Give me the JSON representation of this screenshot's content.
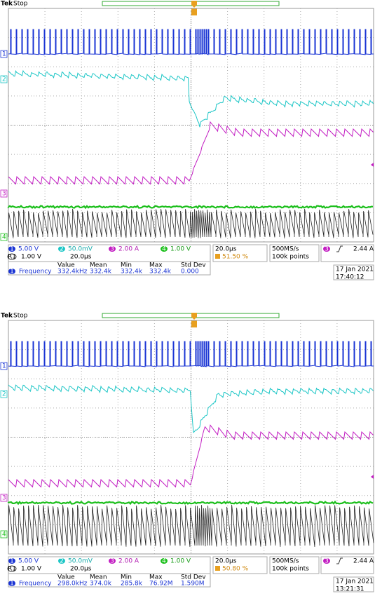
{
  "panels": [
    {
      "brand": "Tek",
      "status": "Stop",
      "markers": [
        "1",
        "2",
        "3",
        "4"
      ],
      "channels": [
        {
          "badge": "1",
          "scale": "5.00 V"
        },
        {
          "badge": "2",
          "scale": "50.0mV"
        },
        {
          "badge": "3",
          "scale": "2.00 A"
        },
        {
          "badge": "4",
          "scale": "1.00 V"
        }
      ],
      "ref": {
        "badge": "R1",
        "scale": "1.00 V",
        "time": "20.0µs"
      },
      "timebase": "20.0µs",
      "trigger_pos": "51.50 %",
      "sample_rate": "500MS/s",
      "record": "100k points",
      "trigger": {
        "badge": "3",
        "level": "2.44 A"
      },
      "measure": {
        "headers": [
          "Value",
          "Mean",
          "Min",
          "Max",
          "Std Dev"
        ],
        "badge": "1",
        "name": "Frequency",
        "values": [
          "332.4kHz",
          "332.4k",
          "332.4k",
          "332.4k",
          "0.000"
        ]
      },
      "date": "17 Jan  2021",
      "time": "17:40:12"
    },
    {
      "brand": "Tek",
      "status": "Stop",
      "markers": [
        "1",
        "2",
        "3",
        "4"
      ],
      "channels": [
        {
          "badge": "1",
          "scale": "5.00 V"
        },
        {
          "badge": "2",
          "scale": "50.0mV"
        },
        {
          "badge": "3",
          "scale": "2.00 A"
        },
        {
          "badge": "4",
          "scale": "1.00 V"
        }
      ],
      "ref": {
        "badge": "R1",
        "scale": "1.00 V",
        "time": "20.0µs"
      },
      "timebase": "20.0µs",
      "trigger_pos": "50.80 %",
      "sample_rate": "500MS/s",
      "record": "100k points",
      "trigger": {
        "badge": "3",
        "level": "2.44 A"
      },
      "measure": {
        "headers": [
          "Value",
          "Mean",
          "Min",
          "Max",
          "Std Dev"
        ],
        "badge": "1",
        "name": "Frequency",
        "values": [
          "298.0kHz",
          "374.0k",
          "285.8k",
          "76.92M",
          "1.590M"
        ]
      },
      "date": "17 Jan  2021",
      "time": "13:21:31"
    }
  ]
}
